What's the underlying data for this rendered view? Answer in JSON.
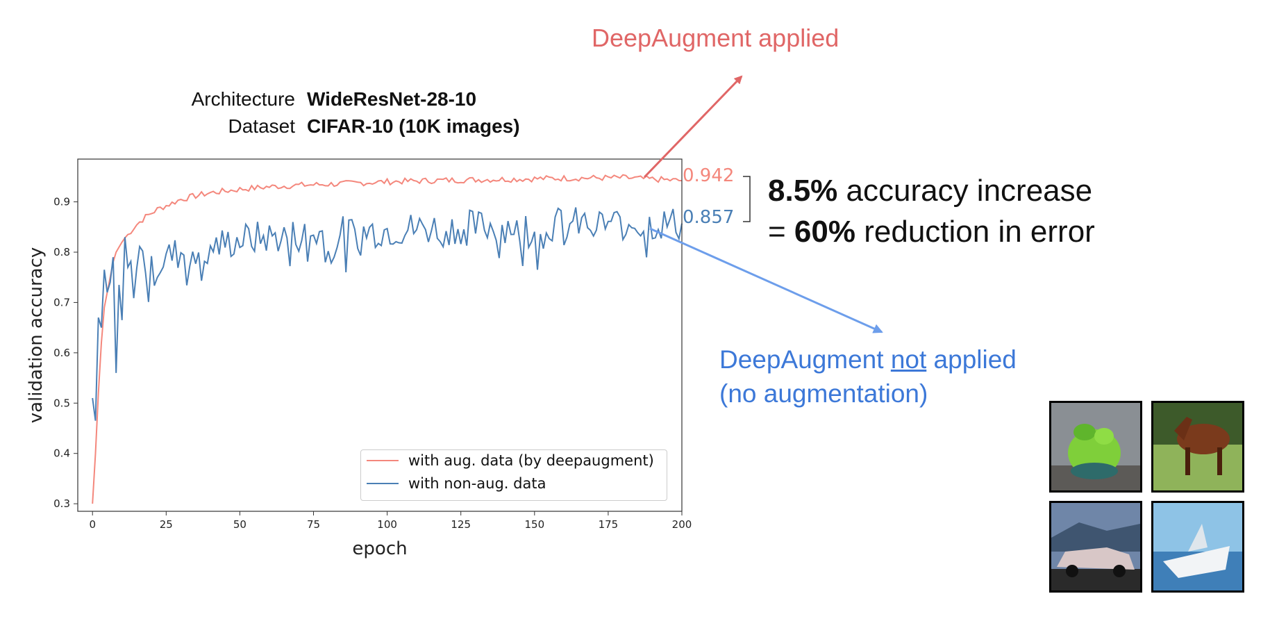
{
  "annotations": {
    "aug_applied": "DeepAugment applied",
    "noaug_line1_a": "DeepAugment ",
    "noaug_line1_not": "not",
    "noaug_line1_b": " applied",
    "noaug_line2": "(no augmentation)"
  },
  "meta": {
    "architecture_label": "Architecture",
    "architecture_value": "WideResNet-28-10",
    "dataset_label": "Dataset",
    "dataset_value": "CIFAR-10 (10K images)"
  },
  "summary": {
    "line1_bold": "8.5%",
    "line1_rest": " accuracy increase",
    "line2_prefix": "= ",
    "line2_bold": "60%",
    "line2_rest": " reduction in error"
  },
  "colors": {
    "aug": "#f4877c",
    "nonaug": "#4a7fb5",
    "aug_arrow": "#e06666",
    "nonaug_arrow": "#6d9eeb"
  },
  "chart_data": {
    "type": "line",
    "xlabel": "epoch",
    "ylabel": "validation accuracy",
    "xlim": [
      -5,
      200
    ],
    "ylim": [
      0.285,
      0.985
    ],
    "xticks": [
      0,
      25,
      50,
      75,
      100,
      125,
      150,
      175,
      200
    ],
    "yticks": [
      0.3,
      0.4,
      0.5,
      0.6,
      0.7,
      0.8,
      0.9
    ],
    "legend_position": "lower-right",
    "final_labels": {
      "aug": "0.942",
      "nonaug": "0.857"
    },
    "series": [
      {
        "name": "with aug. data (by deepaugment)",
        "anchors": [
          [
            0,
            0.3
          ],
          [
            1,
            0.4
          ],
          [
            2,
            0.52
          ],
          [
            3,
            0.62
          ],
          [
            4,
            0.69
          ],
          [
            5,
            0.72
          ],
          [
            6,
            0.75
          ],
          [
            7,
            0.78
          ],
          [
            8,
            0.8
          ],
          [
            10,
            0.82
          ],
          [
            12,
            0.835
          ],
          [
            15,
            0.855
          ],
          [
            18,
            0.87
          ],
          [
            22,
            0.885
          ],
          [
            26,
            0.895
          ],
          [
            30,
            0.905
          ],
          [
            35,
            0.912
          ],
          [
            40,
            0.918
          ],
          [
            50,
            0.925
          ],
          [
            60,
            0.93
          ],
          [
            70,
            0.933
          ],
          [
            80,
            0.935
          ],
          [
            100,
            0.94
          ],
          [
            120,
            0.943
          ],
          [
            140,
            0.945
          ],
          [
            160,
            0.947
          ],
          [
            180,
            0.948
          ],
          [
            200,
            0.942
          ]
        ],
        "noise": 0.006
      },
      {
        "name": "with non-aug. data",
        "anchors": [
          [
            0,
            0.51
          ],
          [
            1,
            0.465
          ],
          [
            2,
            0.67
          ],
          [
            3,
            0.65
          ],
          [
            4,
            0.765
          ],
          [
            5,
            0.72
          ],
          [
            6,
            0.74
          ],
          [
            7,
            0.79
          ],
          [
            8,
            0.56
          ],
          [
            9,
            0.735
          ],
          [
            10,
            0.665
          ],
          [
            11,
            0.83
          ],
          [
            12,
            0.77
          ],
          [
            14,
            0.74
          ],
          [
            16,
            0.8
          ],
          [
            18,
            0.78
          ],
          [
            20,
            0.76
          ],
          [
            25,
            0.79
          ],
          [
            30,
            0.8
          ],
          [
            40,
            0.81
          ],
          [
            50,
            0.825
          ],
          [
            60,
            0.83
          ],
          [
            75,
            0.835
          ],
          [
            100,
            0.845
          ],
          [
            125,
            0.85
          ],
          [
            150,
            0.855
          ],
          [
            175,
            0.857
          ],
          [
            200,
            0.857
          ]
        ],
        "noise": 0.035
      }
    ]
  }
}
